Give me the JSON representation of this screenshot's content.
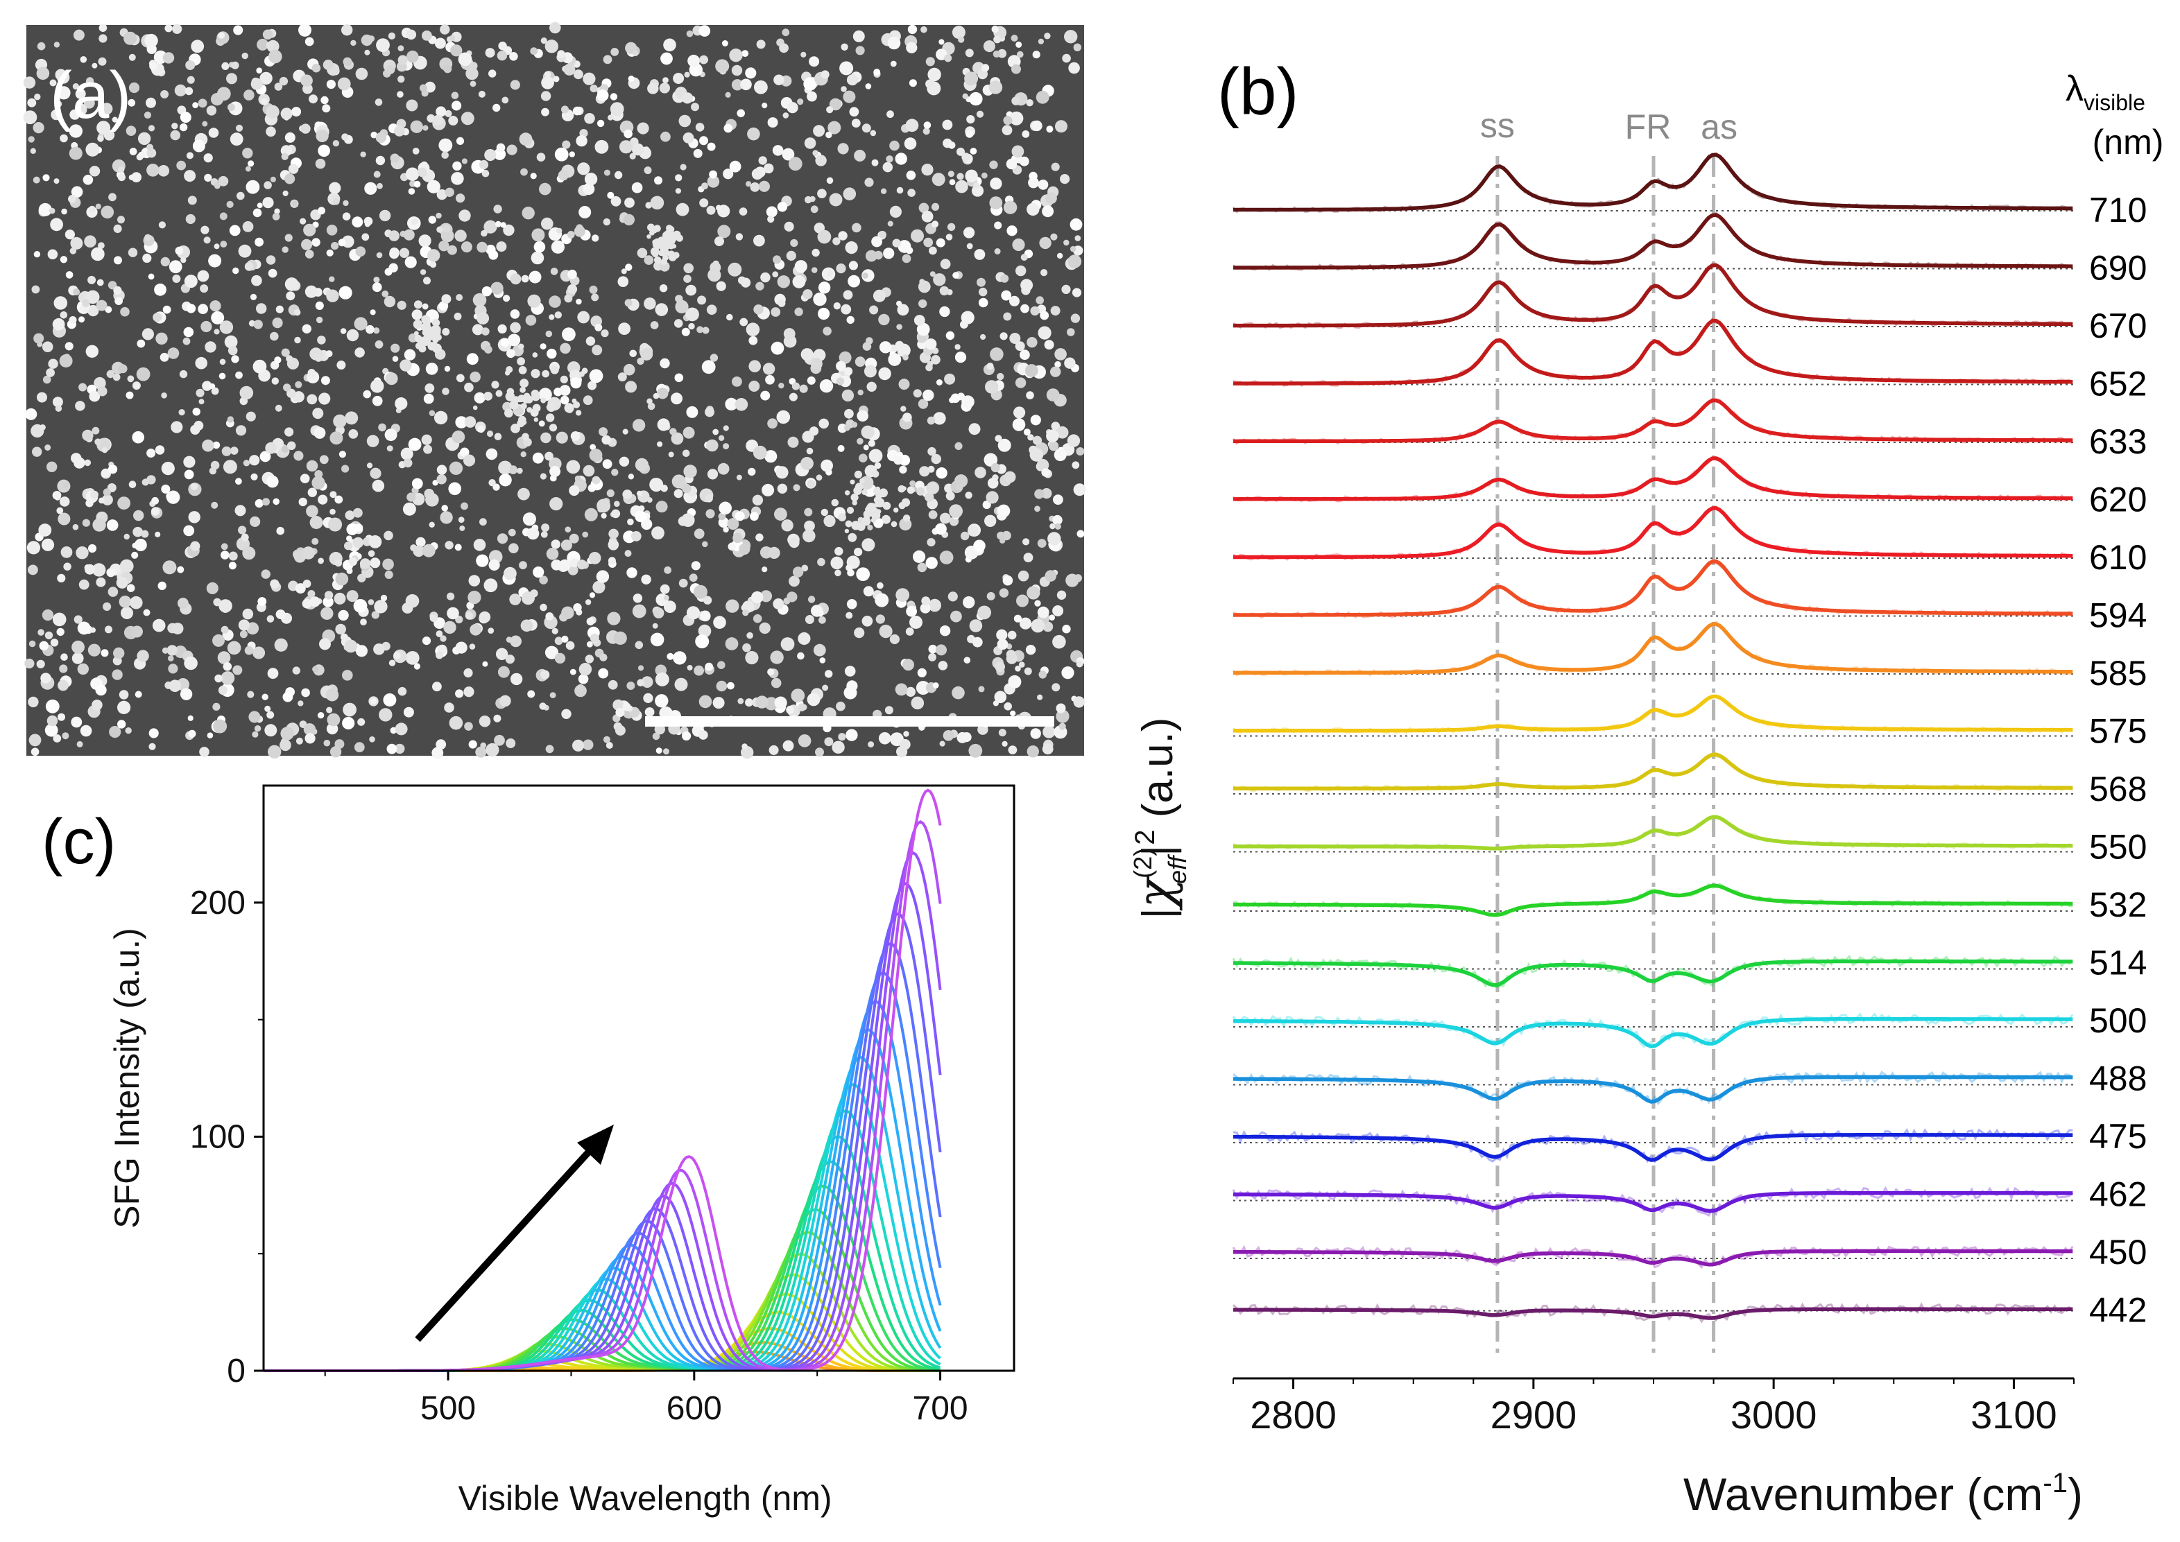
{
  "figure": {
    "panel_a": {
      "label": "(a)"
    },
    "panel_b": {
      "label": "(b)",
      "lambda_header": "λ",
      "lambda_subscript": "visible",
      "unit_header": "(nm)",
      "peak_labels": [
        "ss",
        "FR",
        "as"
      ]
    },
    "panel_c": {
      "label": "(c)"
    }
  },
  "chart_data": [
    {
      "type": "line",
      "panel": "(b)",
      "title": "",
      "xlabel": "Wavenumber (cm-1)",
      "xlabel_text": "Wavenumber (cm",
      "xlabel_sup": "-1",
      "xlabel_close": ")",
      "ylabel": "|χeff(2)|2 (a.u.)",
      "ylabel_parts": {
        "open": "|",
        "chi": "χ",
        "sup": "(2)",
        "sub": "eff",
        "close": "|",
        "pow": "2",
        "unit": " (a.u.)"
      },
      "xlim": [
        2775,
        3125
      ],
      "xticks": [
        2800,
        2900,
        3000,
        3100
      ],
      "peak_positions": {
        "ss": 2885,
        "FR": 2950,
        "as": 2975
      },
      "series": [
        {
          "name": "710",
          "color": "#5a1212",
          "amps": [
            1.0,
            0.5,
            1.2
          ],
          "baseline": 2
        },
        {
          "name": "690",
          "color": "#6e1414",
          "amps": [
            1.0,
            0.45,
            1.15
          ],
          "baseline": 2
        },
        {
          "name": "670",
          "color": "#a01818",
          "amps": [
            1.0,
            0.75,
            1.3
          ],
          "baseline": 2
        },
        {
          "name": "652",
          "color": "#c41a1a",
          "amps": [
            1.0,
            0.8,
            1.35
          ],
          "baseline": 2
        },
        {
          "name": "633",
          "color": "#dc1e1e",
          "amps": [
            0.45,
            0.35,
            0.9
          ],
          "baseline": 2
        },
        {
          "name": "620",
          "color": "#e41c22",
          "amps": [
            0.45,
            0.35,
            0.9
          ],
          "baseline": 2
        },
        {
          "name": "610",
          "color": "#ec1c24",
          "amps": [
            0.75,
            0.65,
            1.05
          ],
          "baseline": 2
        },
        {
          "name": "594",
          "color": "#ef4d24",
          "amps": [
            0.65,
            0.75,
            1.15
          ],
          "baseline": 2
        },
        {
          "name": "585",
          "color": "#f58a1f",
          "amps": [
            0.4,
            0.7,
            1.05
          ],
          "baseline": 2
        },
        {
          "name": "575",
          "color": "#f2c70f",
          "amps": [
            0.1,
            0.4,
            0.75
          ],
          "baseline": 8
        },
        {
          "name": "568",
          "color": "#d6c40f",
          "amps": [
            0.1,
            0.35,
            0.75
          ],
          "baseline": 8
        },
        {
          "name": "550",
          "color": "#a2d62a",
          "amps": [
            -0.05,
            0.3,
            0.65
          ],
          "baseline": 8
        },
        {
          "name": "532",
          "color": "#27d227",
          "amps": [
            -0.25,
            0.25,
            0.4
          ],
          "baseline": 10
        },
        {
          "name": "514",
          "color": "#1cd23c",
          "amps": [
            -0.5,
            -0.35,
            -0.45
          ],
          "baseline": 10
        },
        {
          "name": "500",
          "color": "#1ad4e0",
          "amps": [
            -0.5,
            -0.5,
            -0.55
          ],
          "baseline": 10
        },
        {
          "name": "488",
          "color": "#1890dc",
          "amps": [
            -0.45,
            -0.45,
            -0.5
          ],
          "baseline": 10
        },
        {
          "name": "475",
          "color": "#1222dc",
          "amps": [
            -0.45,
            -0.45,
            -0.55
          ],
          "baseline": 10
        },
        {
          "name": "462",
          "color": "#6a1ad8",
          "amps": [
            -0.3,
            -0.3,
            -0.4
          ],
          "baseline": 10
        },
        {
          "name": "450",
          "color": "#8a1ab0",
          "amps": [
            -0.2,
            -0.2,
            -0.3
          ],
          "baseline": 10
        },
        {
          "name": "442",
          "color": "#6a1c6a",
          "amps": [
            -0.12,
            -0.12,
            -0.2
          ],
          "baseline": 2
        }
      ]
    },
    {
      "type": "line",
      "panel": "(c)",
      "title": "",
      "xlabel": "Visible Wavelength (nm)",
      "ylabel": "SFG Intensity (a.u.)",
      "xlim": [
        425,
        730
      ],
      "ylim": [
        0,
        250
      ],
      "xticks": [
        500,
        600,
        700
      ],
      "yticks": [
        0,
        100,
        200
      ],
      "series_family": {
        "count": 24,
        "left_peak_center_nm": [
          520,
          598
        ],
        "left_peak_height": [
          0,
          89
        ],
        "right_peak_center_nm": [
          625,
          695
        ],
        "right_peak_height": [
          8,
          248
        ],
        "colors": [
          "#ff9a1a",
          "#ffd21a",
          "#c8e81a",
          "#58e03a",
          "#1adc8a",
          "#1ad8d8",
          "#2aa8ff",
          "#5a70ff",
          "#8a50ff",
          "#c850f0"
        ]
      },
      "annotation": "arrow indicating increasing order"
    }
  ]
}
